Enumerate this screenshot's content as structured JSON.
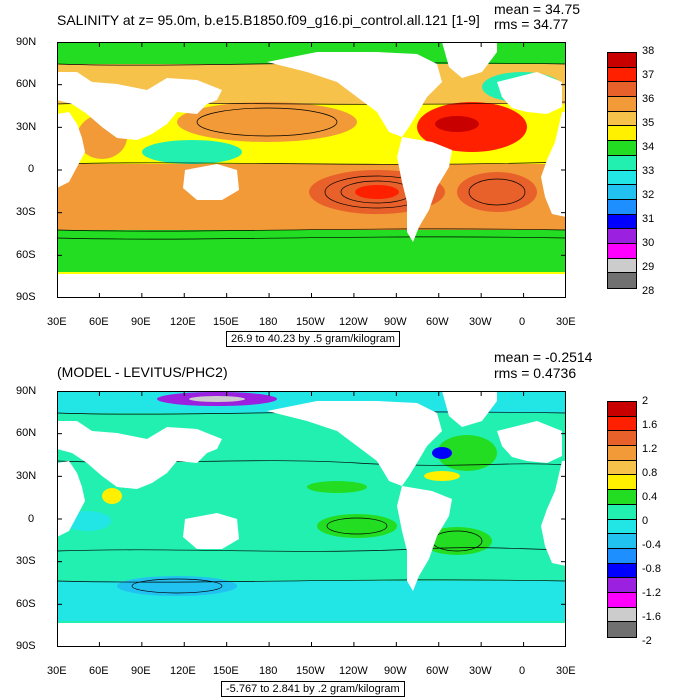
{
  "panels": [
    {
      "title": "SALINITY at z=  95.0m, b.e15.B1850.f09_g16.pi_control.all.121 [1-9]",
      "mean": "mean = 34.75",
      "rms": "rms = 34.77",
      "range_note": "26.9 to 40.23 by .5 gram/kilogram",
      "lat_labels": [
        "90N",
        "60N",
        "30N",
        "0",
        "30S",
        "60S",
        "90S"
      ],
      "lon_labels": [
        "30E",
        "60E",
        "90E",
        "120E",
        "150E",
        "180",
        "150W",
        "120W",
        "90W",
        "60W",
        "30W",
        "0",
        "30E"
      ],
      "colorbar": {
        "labels": [
          "38",
          "37",
          "36",
          "35",
          "34",
          "33",
          "32",
          "31",
          "30",
          "29",
          "28"
        ],
        "colors": [
          "#c80000",
          "#ff2000",
          "#e8602a",
          "#f29a38",
          "#f6c24a",
          "#fff000",
          "#22dd22",
          "#22f0b0",
          "#22e6e6",
          "#22c2f0",
          "#1e8fff",
          "#0000ff",
          "#9b20e0",
          "#ff00ff",
          "#cccccc",
          "#707070"
        ]
      },
      "chart_data": {
        "type": "heatmap",
        "variable": "SALINITY",
        "range_min": 26.9,
        "range_max": 40.23,
        "interval": 0.5,
        "units": "gram/kilogram",
        "colorbar_ticks": [
          38,
          37,
          36,
          35,
          34,
          33,
          32,
          31,
          30,
          29,
          28
        ],
        "mean": 34.75,
        "rms": 34.77
      }
    },
    {
      "title": "(MODEL - LEVITUS/PHC2)",
      "mean": "mean = -0.2514",
      "rms": "rms = 0.4736",
      "range_note": "-5.767 to 2.841 by .2 gram/kilogram",
      "lat_labels": [
        "90N",
        "60N",
        "30N",
        "0",
        "30S",
        "60S",
        "90S"
      ],
      "lon_labels": [
        "30E",
        "60E",
        "90E",
        "120E",
        "150E",
        "180",
        "150W",
        "120W",
        "90W",
        "60W",
        "30W",
        "0",
        "30E"
      ],
      "colorbar": {
        "labels": [
          "2",
          "1.6",
          "1.2",
          "0.8",
          "0.4",
          "0",
          "-0.4",
          "-0.8",
          "-1.2",
          "-1.6",
          "-2"
        ],
        "colors": [
          "#c80000",
          "#ff2000",
          "#e8602a",
          "#f29a38",
          "#f6c24a",
          "#fff000",
          "#22dd22",
          "#22f0b0",
          "#22e6e6",
          "#22c2f0",
          "#1e8fff",
          "#0000ff",
          "#9b20e0",
          "#ff00ff",
          "#cccccc",
          "#707070"
        ]
      },
      "chart_data": {
        "type": "heatmap",
        "variable": "(MODEL - LEVITUS/PHC2)",
        "range_min": -5.767,
        "range_max": 2.841,
        "interval": 0.2,
        "units": "gram/kilogram",
        "colorbar_ticks": [
          2,
          1.6,
          1.2,
          0.8,
          0.4,
          0,
          -0.4,
          -0.8,
          -1.2,
          -1.6,
          -2
        ],
        "mean": -0.2514,
        "rms": 0.4736
      }
    }
  ]
}
